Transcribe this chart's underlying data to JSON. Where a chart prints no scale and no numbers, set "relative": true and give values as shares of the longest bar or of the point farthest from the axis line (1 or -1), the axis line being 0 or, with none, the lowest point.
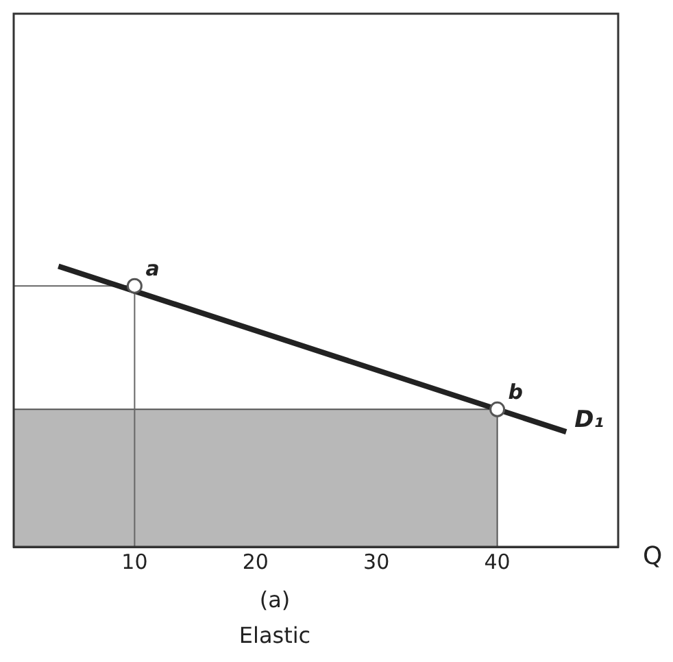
{
  "chart_data": {
    "type": "line",
    "relative": true,
    "xlabel": "Q",
    "xlim": [
      0,
      50
    ],
    "xticks": [
      10,
      20,
      30,
      40
    ],
    "grid": false,
    "legend": false,
    "series": [
      {
        "type": "area",
        "color": "#b8b8b8",
        "x": [
          0,
          40,
          40
        ],
        "values": [
          0.49,
          0.49,
          0
        ]
      },
      {
        "type": "line",
        "color": "#666666",
        "x": [
          0,
          10,
          10
        ],
        "values": [
          0.93,
          0.93,
          0
        ]
      },
      {
        "name": "D₁",
        "color": "#222222",
        "x": [
          3.7,
          45.7
        ],
        "values": [
          1,
          0.41
        ],
        "marker": "none"
      },
      {
        "type": "scatter",
        "color": "#555555",
        "x": [
          10,
          40
        ],
        "values": [
          0.93,
          0.49
        ],
        "marker": "circle"
      }
    ],
    "annotations": [
      {
        "text": "a",
        "x": 10,
        "y": 0.93
      },
      {
        "text": "b",
        "x": 40,
        "y": 0.49
      },
      "(a)",
      "Elastic"
    ]
  }
}
